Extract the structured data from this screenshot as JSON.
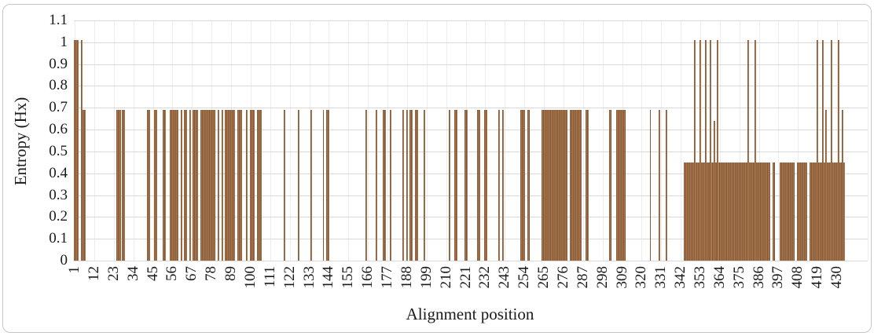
{
  "figure": {
    "background": "#ffffff",
    "border_color": "#c6c6c6",
    "hgrid_color": "#d9d9d9",
    "vgrid_color": "#ededed",
    "bar_color_dark": "#7f512f",
    "bar_color_mid": "#a3744d",
    "bar_color_light": "#b5855c"
  },
  "chart_data": {
    "type": "bar",
    "title": "",
    "xlabel": "Alignment position",
    "ylabel": "Entropy (Hx)",
    "ylim": [
      0,
      1.1
    ],
    "ytick_labels": [
      "1.1",
      "1",
      "0.9",
      "0.8",
      "0.7",
      "0.6",
      "0.5",
      "0.4",
      "0.3",
      "0.2",
      "0.1",
      "0"
    ],
    "ytick_values": [
      1.1,
      1.0,
      0.9,
      0.8,
      0.7,
      0.6,
      0.5,
      0.4,
      0.3,
      0.2,
      0.1,
      0
    ],
    "xtick_labels": [
      "1",
      "12",
      "23",
      "34",
      "45",
      "56",
      "67",
      "78",
      "89",
      "100",
      "111",
      "122",
      "133",
      "144",
      "155",
      "166",
      "177",
      "188",
      "199",
      "210",
      "221",
      "232",
      "243",
      "254",
      "265",
      "276",
      "287",
      "298",
      "309",
      "320",
      "331",
      "342",
      "353",
      "364",
      "375",
      "386",
      "397",
      "408",
      "419",
      "430"
    ],
    "xtick_positions": [
      1,
      12,
      23,
      34,
      45,
      56,
      67,
      78,
      89,
      100,
      111,
      122,
      133,
      144,
      155,
      166,
      177,
      188,
      199,
      210,
      221,
      232,
      243,
      254,
      265,
      276,
      287,
      298,
      309,
      320,
      331,
      342,
      353,
      364,
      375,
      386,
      397,
      408,
      419,
      430
    ],
    "x_range": [
      1,
      434
    ],
    "grid": true,
    "legend": false,
    "value_levels": [
      0.45,
      0.64,
      0.69,
      1.01
    ],
    "segments_format": "[from_position, to_position, entropy_value]",
    "segments": [
      [
        1,
        3,
        1.01
      ],
      [
        5,
        5,
        1.01
      ],
      [
        6,
        7,
        0.69
      ],
      [
        25,
        27,
        0.69
      ],
      [
        28,
        29,
        0.69
      ],
      [
        42,
        43,
        0.69
      ],
      [
        46,
        47,
        0.69
      ],
      [
        51,
        52,
        0.69
      ],
      [
        55,
        59,
        0.69
      ],
      [
        61,
        61,
        0.69
      ],
      [
        63,
        64,
        0.69
      ],
      [
        66,
        66,
        0.69
      ],
      [
        68,
        70,
        0.69
      ],
      [
        72,
        80,
        0.69
      ],
      [
        82,
        82,
        0.69
      ],
      [
        84,
        84,
        0.69
      ],
      [
        86,
        91,
        0.69
      ],
      [
        93,
        95,
        0.69
      ],
      [
        98,
        98,
        0.69
      ],
      [
        100,
        102,
        0.69
      ],
      [
        104,
        106,
        0.69
      ],
      [
        119,
        119,
        0.69
      ],
      [
        127,
        127,
        0.69
      ],
      [
        134,
        134,
        0.69
      ],
      [
        141,
        141,
        0.69
      ],
      [
        143,
        144,
        0.69
      ],
      [
        165,
        165,
        0.69
      ],
      [
        171,
        171,
        0.69
      ],
      [
        175,
        176,
        0.69
      ],
      [
        179,
        179,
        0.69
      ],
      [
        186,
        186,
        0.69
      ],
      [
        188,
        188,
        0.69
      ],
      [
        190,
        191,
        0.69
      ],
      [
        193,
        194,
        0.69
      ],
      [
        198,
        198,
        0.69
      ],
      [
        212,
        212,
        0.69
      ],
      [
        215,
        216,
        0.69
      ],
      [
        221,
        222,
        0.69
      ],
      [
        228,
        229,
        0.69
      ],
      [
        232,
        233,
        0.69
      ],
      [
        240,
        240,
        0.69
      ],
      [
        242,
        242,
        0.69
      ],
      [
        252,
        254,
        0.69
      ],
      [
        256,
        257,
        0.69
      ],
      [
        264,
        278,
        0.69
      ],
      [
        280,
        286,
        0.69
      ],
      [
        289,
        290,
        0.69
      ],
      [
        302,
        303,
        0.69
      ],
      [
        306,
        311,
        0.69
      ],
      [
        325,
        325,
        0.69
      ],
      [
        330,
        330,
        0.69
      ],
      [
        334,
        334,
        0.69
      ],
      [
        344,
        392,
        0.45
      ],
      [
        350,
        350,
        1.01
      ],
      [
        353,
        353,
        1.01
      ],
      [
        356,
        356,
        1.01
      ],
      [
        359,
        359,
        1.01
      ],
      [
        363,
        363,
        1.01
      ],
      [
        361,
        361,
        0.64
      ],
      [
        380,
        380,
        1.01
      ],
      [
        384,
        384,
        1.01
      ],
      [
        394,
        395,
        0.45
      ],
      [
        398,
        406,
        0.45
      ],
      [
        408,
        413,
        0.45
      ],
      [
        415,
        434,
        0.45
      ],
      [
        419,
        419,
        1.01
      ],
      [
        422,
        422,
        1.01
      ],
      [
        424,
        424,
        0.69
      ],
      [
        427,
        427,
        1.01
      ],
      [
        431,
        431,
        1.01
      ],
      [
        433,
        433,
        0.69
      ]
    ]
  }
}
